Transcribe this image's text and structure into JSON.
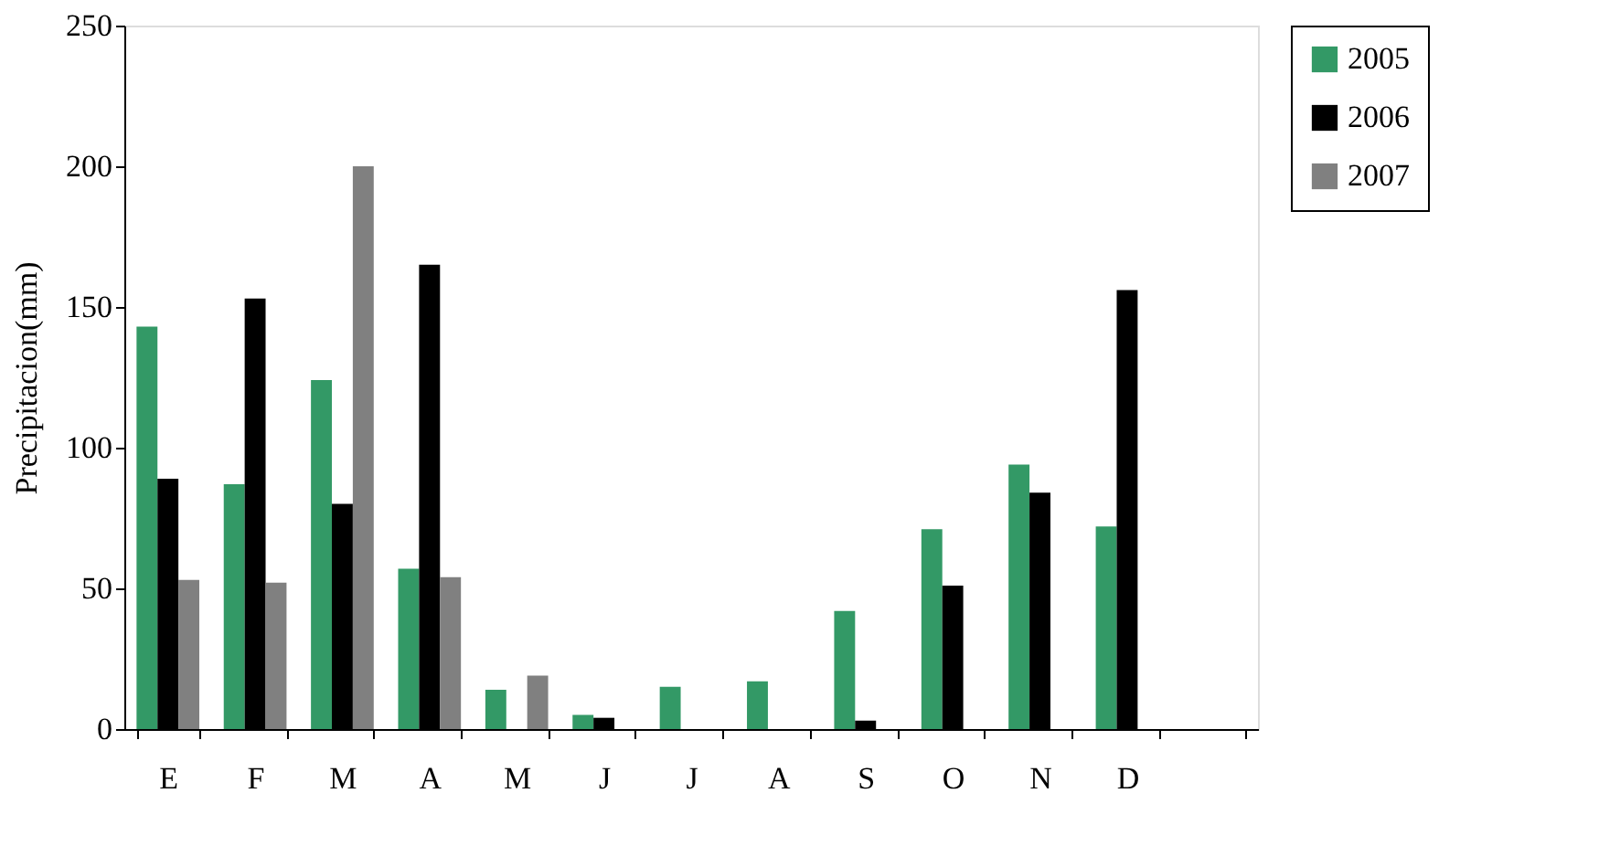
{
  "chart_data": {
    "type": "bar",
    "ylabel": "Precipitacion(mm)",
    "categories": [
      "E",
      "F",
      "M",
      "A",
      "M",
      "J",
      "J",
      "A",
      "S",
      "O",
      "N",
      "D",
      null
    ],
    "series": [
      {
        "name": "2005",
        "color": "#339966",
        "values": [
          143,
          87,
          124,
          57,
          14,
          5,
          15,
          17,
          42,
          71,
          94,
          72,
          null
        ]
      },
      {
        "name": "2006",
        "color": "#000000",
        "values": [
          89,
          153,
          80,
          165,
          null,
          4,
          null,
          null,
          3,
          51,
          84,
          156,
          null
        ]
      },
      {
        "name": "2007",
        "color": "#808080",
        "values": [
          53,
          52,
          200,
          54,
          19,
          null,
          null,
          null,
          null,
          null,
          null,
          null,
          null
        ]
      }
    ],
    "ylim": [
      0,
      250
    ],
    "yticks": [
      0,
      50,
      100,
      150,
      200,
      250
    ],
    "grid": false,
    "legend": "right"
  }
}
